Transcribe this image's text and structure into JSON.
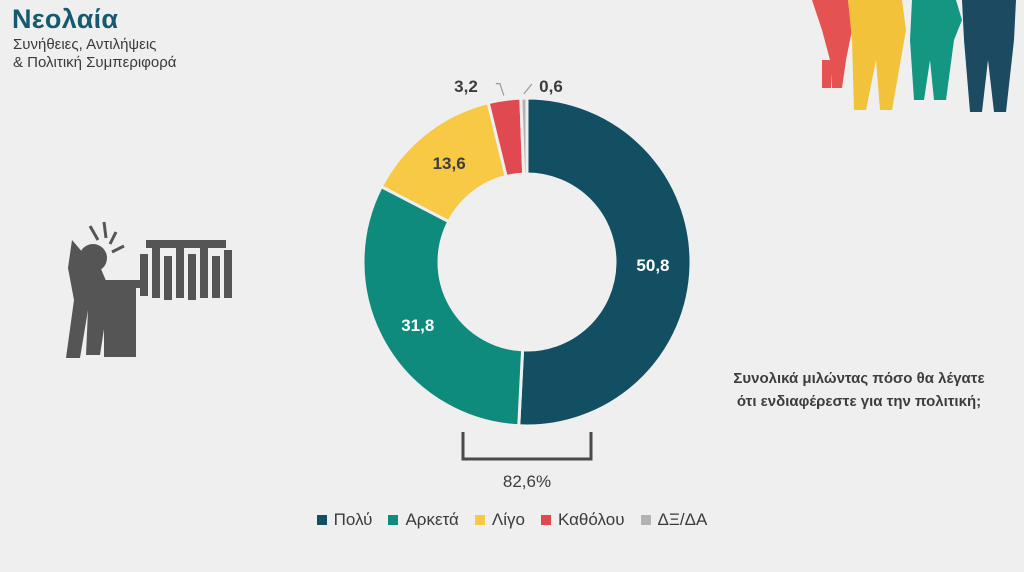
{
  "header": {
    "title": "Νεολαία",
    "subtitle_line1": "Συνήθειες, Αντιλήψεις",
    "subtitle_line2": "& Πολιτική Συμπεριφορά"
  },
  "question": "Συνολικά μιλώντας πόσο θα λέγατε ότι ενδιαφέρεστε για την πολιτική;",
  "bracket_label": "82,6%",
  "chart_data": {
    "type": "pie",
    "donut": true,
    "title": "",
    "categories": [
      "Πολύ",
      "Αρκετά",
      "Λίγο",
      "Καθόλου",
      "ΔΞ/ΔΑ"
    ],
    "values": [
      50.8,
      31.8,
      13.6,
      3.2,
      0.6
    ],
    "value_labels": [
      "50,8",
      "31,8",
      "13,6",
      "3,2",
      "0,6"
    ],
    "colors": [
      "#134f63",
      "#0e8b7d",
      "#f7c944",
      "#e0494f",
      "#b3b3b3"
    ],
    "legend_position": "bottom"
  }
}
